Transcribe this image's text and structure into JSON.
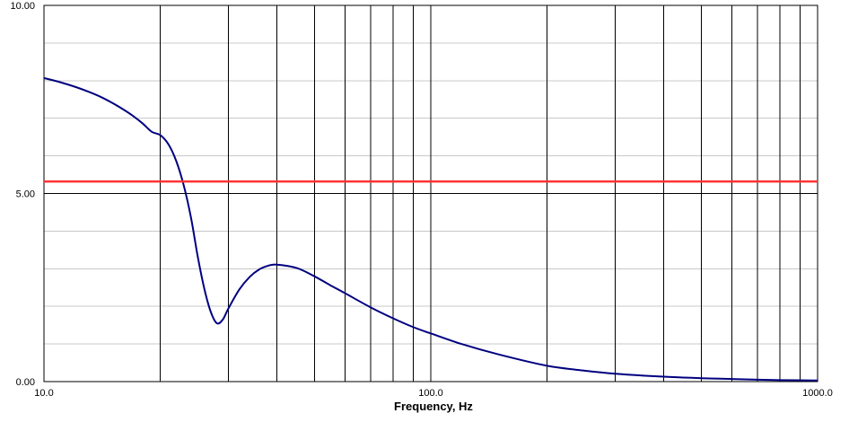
{
  "chart_data": {
    "type": "line",
    "title": "",
    "xlabel": "Frequency, Hz",
    "ylabel": "",
    "x_scale": "log",
    "xlim": [
      10,
      1000
    ],
    "ylim": [
      0,
      10
    ],
    "x_tick_labels": [
      "10.0",
      "100.0",
      "1000.0"
    ],
    "y_tick_labels": [
      "0.00",
      "5.00",
      "10.00"
    ],
    "grid": true,
    "legend": "none",
    "series": [
      {
        "color": "#000080",
        "points": [
          [
            10,
            8.07
          ],
          [
            11,
            7.96
          ],
          [
            12,
            7.84
          ],
          [
            13,
            7.71
          ],
          [
            14,
            7.57
          ],
          [
            15,
            7.41
          ],
          [
            16,
            7.24
          ],
          [
            17,
            7.06
          ],
          [
            18,
            6.86
          ],
          [
            19,
            6.64
          ],
          [
            20,
            6.55
          ],
          [
            21,
            6.3
          ],
          [
            22,
            5.85
          ],
          [
            23,
            5.2
          ],
          [
            24,
            4.35
          ],
          [
            25,
            3.3
          ],
          [
            26,
            2.45
          ],
          [
            27,
            1.85
          ],
          [
            28,
            1.55
          ],
          [
            29,
            1.65
          ],
          [
            30,
            1.95
          ],
          [
            32,
            2.45
          ],
          [
            34,
            2.78
          ],
          [
            36,
            2.98
          ],
          [
            38,
            3.08
          ],
          [
            40,
            3.11
          ],
          [
            45,
            3.02
          ],
          [
            50,
            2.8
          ],
          [
            55,
            2.56
          ],
          [
            60,
            2.35
          ],
          [
            70,
            1.97
          ],
          [
            80,
            1.68
          ],
          [
            90,
            1.45
          ],
          [
            100,
            1.28
          ],
          [
            120,
            1.0
          ],
          [
            150,
            0.72
          ],
          [
            200,
            0.42
          ],
          [
            250,
            0.29
          ],
          [
            300,
            0.21
          ],
          [
            400,
            0.13
          ],
          [
            500,
            0.09
          ],
          [
            600,
            0.07
          ],
          [
            700,
            0.05
          ],
          [
            800,
            0.04
          ],
          [
            900,
            0.035
          ],
          [
            1000,
            0.03
          ]
        ]
      },
      {
        "color": "#ff3333",
        "points": [
          [
            10,
            5.32
          ],
          [
            1000,
            5.32
          ]
        ]
      }
    ]
  }
}
